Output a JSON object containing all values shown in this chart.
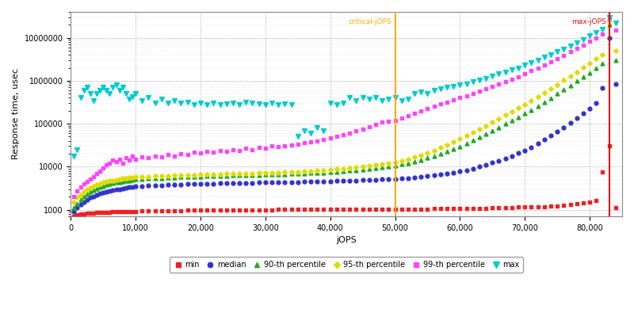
{
  "xlabel": "jOPS",
  "ylabel": "Response time, usec",
  "xlim": [
    0,
    85000
  ],
  "ylim_log": [
    700,
    40000000
  ],
  "critical_jops": 50000,
  "max_jops": 83000,
  "x": [
    500,
    1000,
    1500,
    2000,
    2500,
    3000,
    3500,
    4000,
    4500,
    5000,
    5500,
    6000,
    6500,
    7000,
    7500,
    8000,
    8500,
    9000,
    9500,
    10000,
    11000,
    12000,
    13000,
    14000,
    15000,
    16000,
    17000,
    18000,
    19000,
    20000,
    21000,
    22000,
    23000,
    24000,
    25000,
    26000,
    27000,
    28000,
    29000,
    30000,
    31000,
    32000,
    33000,
    34000,
    35000,
    36000,
    37000,
    38000,
    39000,
    40000,
    41000,
    42000,
    43000,
    44000,
    45000,
    46000,
    47000,
    48000,
    49000,
    50000,
    51000,
    52000,
    53000,
    54000,
    55000,
    56000,
    57000,
    58000,
    59000,
    60000,
    61000,
    62000,
    63000,
    64000,
    65000,
    66000,
    67000,
    68000,
    69000,
    70000,
    71000,
    72000,
    73000,
    74000,
    75000,
    76000,
    77000,
    78000,
    79000,
    80000,
    81000,
    82000,
    83000,
    84000
  ],
  "min": [
    700,
    750,
    780,
    800,
    820,
    830,
    840,
    850,
    860,
    870,
    875,
    880,
    885,
    890,
    895,
    900,
    905,
    910,
    915,
    920,
    930,
    935,
    940,
    945,
    950,
    955,
    960,
    965,
    970,
    975,
    980,
    985,
    990,
    992,
    995,
    997,
    999,
    1000,
    1001,
    1002,
    1003,
    1005,
    1007,
    1008,
    1009,
    1010,
    1011,
    1012,
    1013,
    1015,
    1016,
    1017,
    1018,
    1020,
    1022,
    1023,
    1025,
    1027,
    1030,
    1032,
    1035,
    1038,
    1040,
    1042,
    1045,
    1048,
    1050,
    1055,
    1060,
    1065,
    1070,
    1075,
    1080,
    1090,
    1100,
    1110,
    1120,
    1130,
    1140,
    1150,
    1160,
    1170,
    1180,
    1200,
    1230,
    1260,
    1300,
    1360,
    1430,
    1520,
    1650,
    7500,
    30000,
    1100
  ],
  "median": [
    900,
    1100,
    1300,
    1500,
    1700,
    1900,
    2050,
    2200,
    2350,
    2500,
    2600,
    2700,
    2800,
    2900,
    3000,
    3100,
    3200,
    3300,
    3380,
    3460,
    3530,
    3600,
    3660,
    3720,
    3770,
    3820,
    3870,
    3910,
    3950,
    3990,
    4030,
    4060,
    4100,
    4130,
    4160,
    4190,
    4210,
    4240,
    4260,
    4280,
    4310,
    4340,
    4370,
    4400,
    4430,
    4460,
    4500,
    4540,
    4580,
    4620,
    4660,
    4710,
    4760,
    4810,
    4860,
    4920,
    4980,
    5040,
    5110,
    5180,
    5300,
    5450,
    5620,
    5810,
    6020,
    6260,
    6540,
    6870,
    7260,
    7730,
    8340,
    9090,
    10000,
    11100,
    12400,
    13900,
    15700,
    17900,
    20700,
    24100,
    28700,
    34700,
    42700,
    53000,
    66000,
    83000,
    105000,
    135000,
    174000,
    228000,
    303000,
    680000,
    10000000,
    850000
  ],
  "p90": [
    1100,
    1400,
    1700,
    2000,
    2300,
    2600,
    2850,
    3100,
    3350,
    3550,
    3750,
    3950,
    4100,
    4250,
    4400,
    4540,
    4680,
    4800,
    4920,
    5040,
    5160,
    5270,
    5370,
    5470,
    5560,
    5650,
    5730,
    5810,
    5880,
    5950,
    6020,
    6080,
    6140,
    6200,
    6260,
    6310,
    6360,
    6410,
    6460,
    6510,
    6570,
    6640,
    6710,
    6790,
    6880,
    6980,
    7090,
    7210,
    7350,
    7500,
    7670,
    7860,
    8070,
    8310,
    8580,
    8890,
    9240,
    9640,
    10100,
    10600,
    11300,
    12200,
    13200,
    14500,
    16000,
    17800,
    19900,
    22500,
    25700,
    29800,
    35000,
    41500,
    49500,
    59000,
    70000,
    83000,
    99000,
    118000,
    142000,
    172000,
    210000,
    258000,
    320000,
    398000,
    497000,
    623000,
    781000,
    980000,
    1230000,
    1550000,
    1960000,
    2480000,
    20000000,
    3000000
  ],
  "p95": [
    1500,
    1900,
    2200,
    2600,
    2900,
    3200,
    3500,
    3800,
    4050,
    4250,
    4450,
    4650,
    4820,
    4990,
    5140,
    5270,
    5400,
    5520,
    5630,
    5740,
    5840,
    5930,
    6020,
    6110,
    6190,
    6270,
    6340,
    6410,
    6480,
    6540,
    6610,
    6670,
    6730,
    6800,
    6860,
    6920,
    6980,
    7050,
    7110,
    7180,
    7260,
    7350,
    7450,
    7560,
    7680,
    7820,
    7970,
    8140,
    8330,
    8540,
    8770,
    9030,
    9320,
    9650,
    10020,
    10440,
    10920,
    11460,
    12060,
    12740,
    13720,
    15000,
    16600,
    18600,
    21100,
    24100,
    27800,
    32300,
    37900,
    44700,
    53000,
    63000,
    75000,
    90000,
    108000,
    130000,
    157000,
    190000,
    231000,
    282000,
    346000,
    426000,
    527000,
    654000,
    814000,
    1020000,
    1270000,
    1600000,
    2010000,
    2540000,
    3210000,
    4060000,
    25000000,
    5000000
  ],
  "p99": [
    2000,
    2700,
    3400,
    4000,
    4600,
    5200,
    5900,
    6800,
    8000,
    9500,
    11000,
    12000,
    14000,
    13000,
    15000,
    12000,
    16000,
    14000,
    18000,
    15000,
    17000,
    16000,
    18000,
    17000,
    19000,
    18000,
    20000,
    19000,
    22000,
    21000,
    23000,
    22000,
    24000,
    23000,
    25000,
    24000,
    27000,
    25000,
    28000,
    27000,
    30000,
    29000,
    31000,
    32000,
    34000,
    36000,
    38000,
    40000,
    43000,
    46000,
    50000,
    55000,
    61000,
    68000,
    76000,
    85000,
    96000,
    108000,
    112000,
    120000,
    135000,
    155000,
    175000,
    200000,
    225000,
    255000,
    285000,
    320000,
    360000,
    400000,
    450000,
    510000,
    575000,
    650000,
    740000,
    840000,
    960000,
    1100000,
    1250000,
    1450000,
    1700000,
    2000000,
    2350000,
    2780000,
    3300000,
    3950000,
    4720000,
    5660000,
    6800000,
    8200000,
    9900000,
    12000000,
    30000000,
    15000000
  ],
  "max_series": [
    18000,
    25000,
    400000,
    600000,
    700000,
    500000,
    350000,
    500000,
    600000,
    700000,
    600000,
    500000,
    700000,
    800000,
    600000,
    700000,
    500000,
    380000,
    420000,
    500000,
    350000,
    400000,
    300000,
    380000,
    300000,
    350000,
    300000,
    320000,
    280000,
    300000,
    280000,
    300000,
    280000,
    290000,
    300000,
    280000,
    320000,
    300000,
    290000,
    280000,
    300000,
    280000,
    290000,
    280000,
    50000,
    70000,
    60000,
    80000,
    70000,
    300000,
    280000,
    300000,
    400000,
    350000,
    400000,
    380000,
    400000,
    350000,
    380000,
    400000,
    350000,
    380000,
    500000,
    550000,
    500000,
    600000,
    650000,
    700000,
    750000,
    800000,
    850000,
    950000,
    1050000,
    1150000,
    1300000,
    1450000,
    1600000,
    1800000,
    2000000,
    2300000,
    2600000,
    3000000,
    3500000,
    4000000,
    4700000,
    5500000,
    6500000,
    7700000,
    9100000,
    11000000,
    13000000,
    16000000,
    30000000,
    22000000
  ],
  "colors": {
    "min": "#ee2222",
    "median": "#3333cc",
    "p90": "#22aa22",
    "p95": "#dddd00",
    "p99": "#ff44ff",
    "max": "#00cccc",
    "critical": "#ffaa00",
    "maxjops": "#dd1111"
  },
  "legend_labels": [
    "min",
    "median",
    "90-th percentile",
    "95-th percentile",
    "99-th percentile",
    "max"
  ],
  "xticks": [
    0,
    10000,
    20000,
    30000,
    40000,
    50000,
    60000,
    70000,
    80000
  ],
  "xtick_labels": [
    "0",
    "10,000",
    "20,000",
    "30,000",
    "40,000",
    "50,000",
    "60,000",
    "70,000",
    "80,000"
  ],
  "yticks": [
    1000,
    10000,
    100000,
    1000000,
    10000000
  ],
  "ytick_labels": [
    "1000",
    "10000",
    "100000",
    "1000000",
    "10000000"
  ]
}
